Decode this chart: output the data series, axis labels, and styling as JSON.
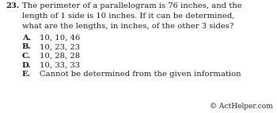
{
  "question_number": "23.",
  "question_text_line1": "The perimeter of a parallelogram is 76 inches, and the",
  "question_text_line2": "length of 1 side is 10 inches. If it can be determined,",
  "question_text_line3": "what are the lengths, in inches, of the other 3 sides?",
  "choices": [
    {
      "letter": "A.",
      "text": "10, 10, 46"
    },
    {
      "letter": "B.",
      "text": "10, 23, 23"
    },
    {
      "letter": "C.",
      "text": "10, 28, 28"
    },
    {
      "letter": "D.",
      "text": "10, 33, 33"
    },
    {
      "letter": "E.",
      "text": "Cannot be determined from the given information"
    }
  ],
  "footer": "© ActHelper.com",
  "bg_color": "#ffffff",
  "text_color": "#1a1a1a",
  "font_size_question": 7.2,
  "font_size_choices": 7.2,
  "font_size_footer": 6.5
}
